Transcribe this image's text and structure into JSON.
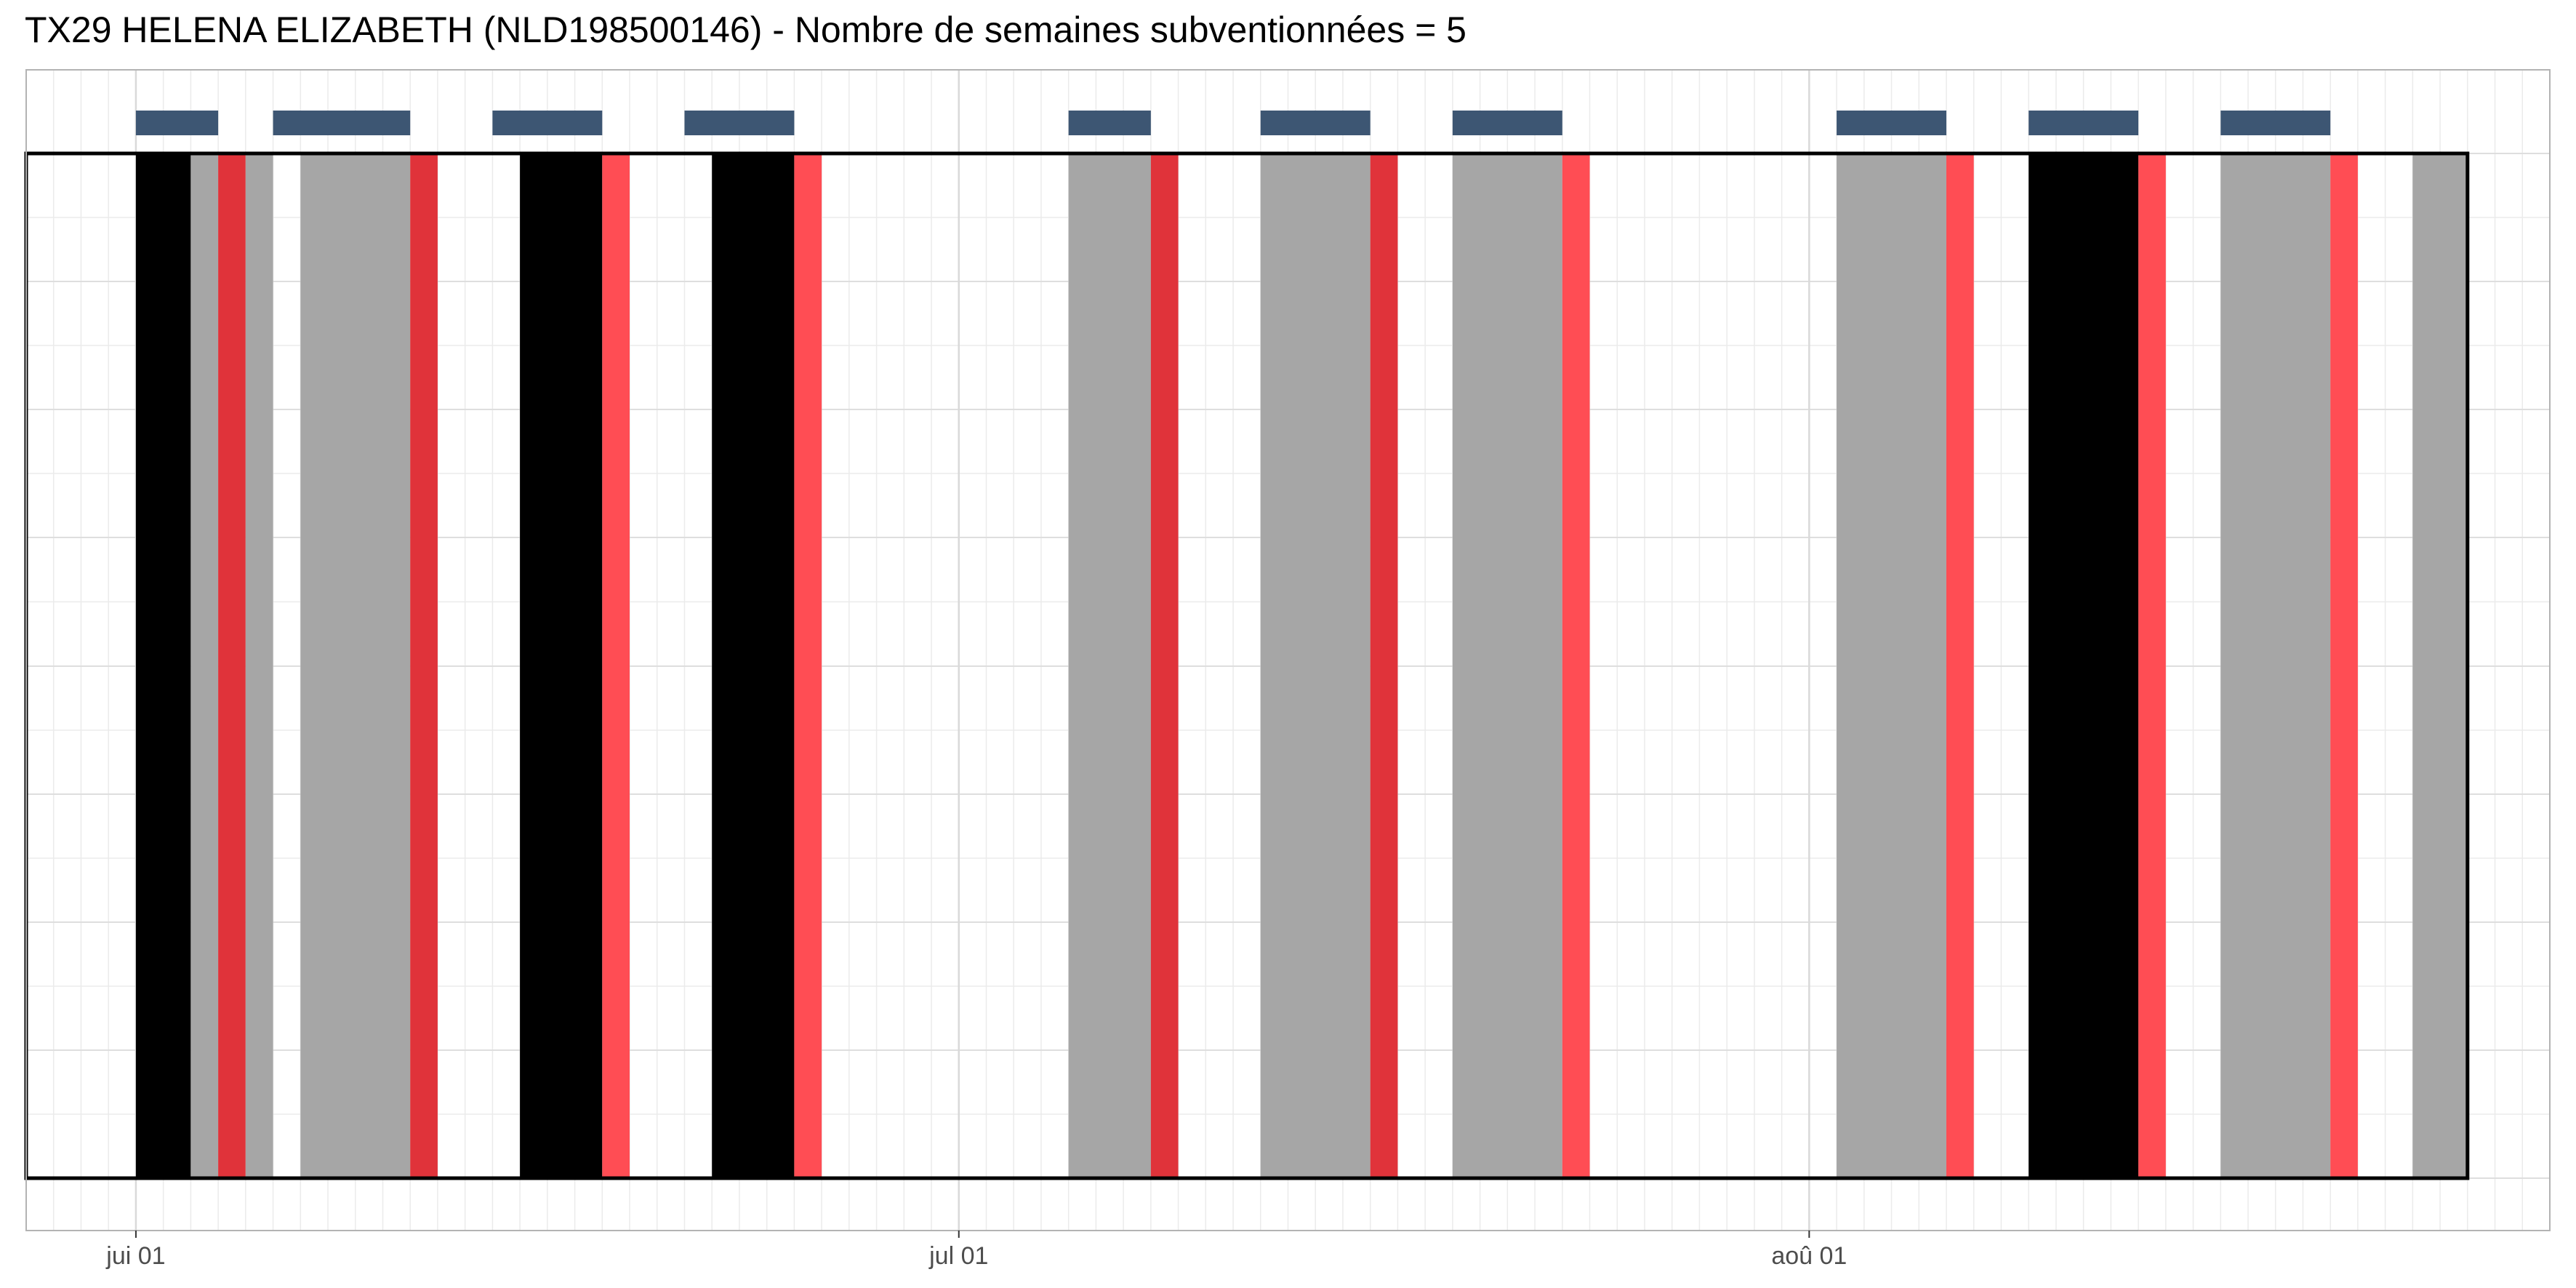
{
  "chart_data": {
    "type": "timeline",
    "title": "TX29 HELENA ELIZABETH (NLD198500146) - Nombre de semaines subventionnées = 5",
    "x_axis": {
      "type": "date",
      "range": [
        "2019-05-28",
        "2019-08-28"
      ],
      "ticks": [
        {
          "date": "2019-06-01",
          "label": "jui 01"
        },
        {
          "date": "2019-07-01",
          "label": "jul 01"
        },
        {
          "date": "2019-08-01",
          "label": "aoû 01"
        }
      ]
    },
    "period": {
      "start": "2019-05-28",
      "end": "2019-08-25"
    },
    "colors": {
      "black": "#000000",
      "gray": "#a6a6a6",
      "red_dark": "#e0333a",
      "red_light": "#ff4d54",
      "week_marker": "#3d5673",
      "frame": "#000000"
    },
    "weeks": [
      {
        "start": "2019-06-01",
        "end": "2019-06-04"
      },
      {
        "start": "2019-06-06",
        "end": "2019-06-11"
      },
      {
        "start": "2019-06-14",
        "end": "2019-06-18"
      },
      {
        "start": "2019-06-21",
        "end": "2019-06-25"
      },
      {
        "start": "2019-07-05",
        "end": "2019-07-08"
      },
      {
        "start": "2019-07-12",
        "end": "2019-07-16"
      },
      {
        "start": "2019-07-19",
        "end": "2019-07-23"
      },
      {
        "start": "2019-08-02",
        "end": "2019-08-06"
      },
      {
        "start": "2019-08-09",
        "end": "2019-08-13"
      },
      {
        "start": "2019-08-16",
        "end": "2019-08-20"
      }
    ],
    "bars": [
      {
        "start": "2019-06-01",
        "end": "2019-06-03",
        "color": "black"
      },
      {
        "start": "2019-06-03",
        "end": "2019-06-04",
        "color": "gray"
      },
      {
        "start": "2019-06-04",
        "end": "2019-06-05",
        "color": "red_dark"
      },
      {
        "start": "2019-06-05",
        "end": "2019-06-06",
        "color": "gray"
      },
      {
        "start": "2019-06-07",
        "end": "2019-06-11",
        "color": "gray"
      },
      {
        "start": "2019-06-11",
        "end": "2019-06-12",
        "color": "red_dark"
      },
      {
        "start": "2019-06-15",
        "end": "2019-06-18",
        "color": "black"
      },
      {
        "start": "2019-06-18",
        "end": "2019-06-19",
        "color": "red_light"
      },
      {
        "start": "2019-06-22",
        "end": "2019-06-25",
        "color": "black"
      },
      {
        "start": "2019-06-25",
        "end": "2019-06-26",
        "color": "red_light"
      },
      {
        "start": "2019-07-05",
        "end": "2019-07-08",
        "color": "gray"
      },
      {
        "start": "2019-07-08",
        "end": "2019-07-09",
        "color": "red_dark"
      },
      {
        "start": "2019-07-12",
        "end": "2019-07-16",
        "color": "gray"
      },
      {
        "start": "2019-07-16",
        "end": "2019-07-17",
        "color": "red_dark"
      },
      {
        "start": "2019-07-19",
        "end": "2019-07-23",
        "color": "gray"
      },
      {
        "start": "2019-07-23",
        "end": "2019-07-24",
        "color": "red_light"
      },
      {
        "start": "2019-08-02",
        "end": "2019-08-06",
        "color": "gray"
      },
      {
        "start": "2019-08-06",
        "end": "2019-08-07",
        "color": "red_light"
      },
      {
        "start": "2019-08-09",
        "end": "2019-08-13",
        "color": "black"
      },
      {
        "start": "2019-08-13",
        "end": "2019-08-14",
        "color": "red_light"
      },
      {
        "start": "2019-08-16",
        "end": "2019-08-20",
        "color": "gray"
      },
      {
        "start": "2019-08-20",
        "end": "2019-08-21",
        "color": "red_light"
      },
      {
        "start": "2019-08-23",
        "end": "2019-08-25",
        "color": "gray"
      }
    ]
  }
}
